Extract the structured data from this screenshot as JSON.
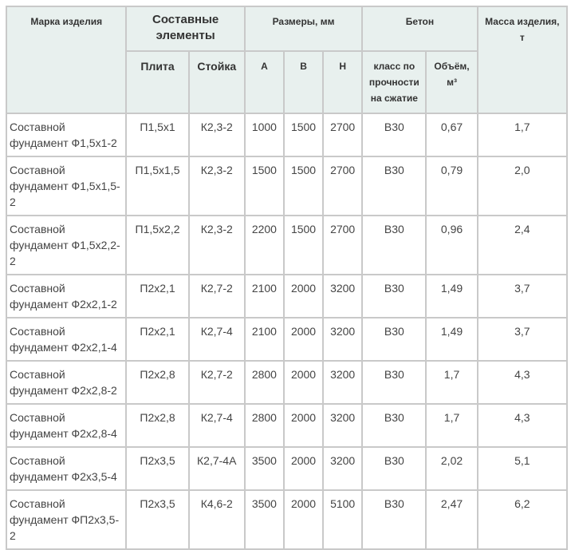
{
  "header": {
    "mark": "Марка изделия",
    "elements": "Составные элементы",
    "sizes": "Размеры, мм",
    "concrete": "Бетон",
    "mass": "Масса изделия, т",
    "plate": "Плита",
    "column": "Стойка",
    "a": "А",
    "b": "В",
    "h": "Н",
    "strength": "класс по прочности на сжатие",
    "volume": "Объём, м³"
  },
  "rows": [
    [
      "Составной фундамент Ф1,5х1-2",
      "П1,5х1",
      "К2,3-2",
      "1000",
      "1500",
      "2700",
      "В30",
      "0,67",
      "1,7"
    ],
    [
      "Составной фундамент Ф1,5х1,5-2",
      "П1,5х1,5",
      "К2,3-2",
      "1500",
      "1500",
      "2700",
      "В30",
      "0,79",
      "2,0"
    ],
    [
      "Составной фундамент Ф1,5х2,2-2",
      "П1,5х2,2",
      "К2,3-2",
      "2200",
      "1500",
      "2700",
      "В30",
      "0,96",
      "2,4"
    ],
    [
      "Составной фундамент Ф2х2,1-2",
      "П2х2,1",
      "К2,7-2",
      "2100",
      "2000",
      "3200",
      "В30",
      "1,49",
      "3,7"
    ],
    [
      "Составной фундамент Ф2х2,1-4",
      "П2х2,1",
      "К2,7-4",
      "2100",
      "2000",
      "3200",
      "В30",
      "1,49",
      "3,7"
    ],
    [
      "Составной фундамент Ф2х2,8-2",
      "П2х2,8",
      "К2,7-2",
      "2800",
      "2000",
      "3200",
      "В30",
      "1,7",
      "4,3"
    ],
    [
      "Составной фундамент Ф2х2,8-4",
      "П2х2,8",
      "К2,7-4",
      "2800",
      "2000",
      "3200",
      "В30",
      "1,7",
      "4,3"
    ],
    [
      "Составной фундамент Ф2х3,5-4",
      "П2х3,5",
      "К2,7-4А",
      "3500",
      "2000",
      "3200",
      "В30",
      "2,02",
      "5,1"
    ],
    [
      "Составной фундамент ФП2х3,5-2",
      "П2х3,5",
      "К4,6-2",
      "3500",
      "2000",
      "5100",
      "В30",
      "2,47",
      "6,2"
    ]
  ]
}
